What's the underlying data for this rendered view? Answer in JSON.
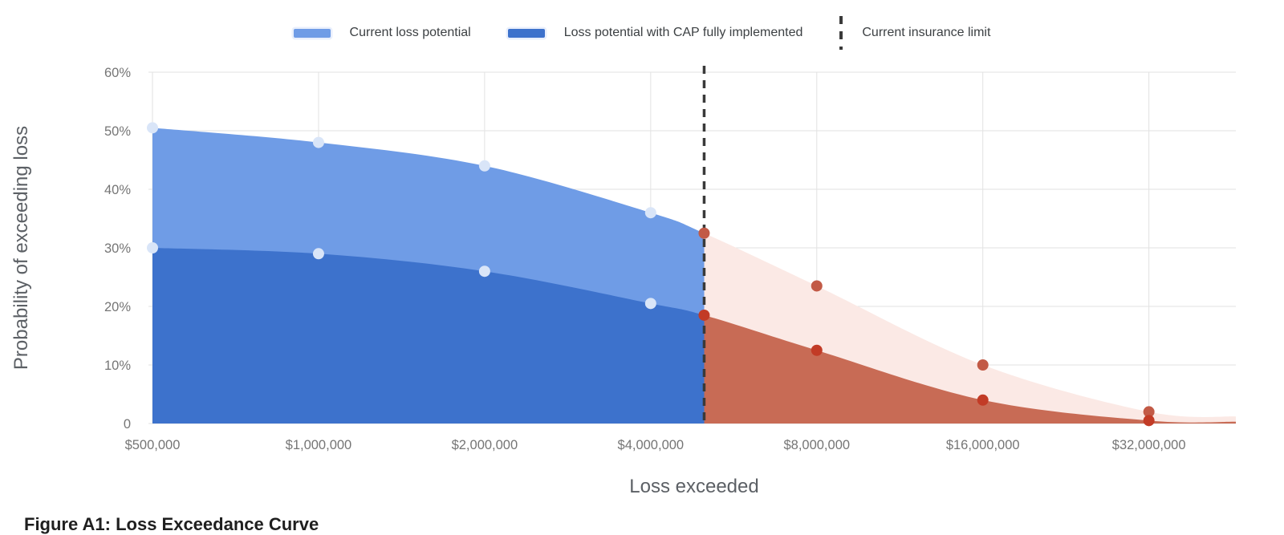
{
  "legend": {
    "items": [
      {
        "label": "Current loss potential",
        "swatch_color": "#6f9ce6",
        "type": "swatch"
      },
      {
        "label": "Loss potential with CAP fully implemented",
        "swatch_color": "#3d72cc",
        "type": "swatch"
      },
      {
        "label": "Current insurance limit",
        "type": "dashed-line",
        "color": "#3a3a3a"
      }
    ]
  },
  "chart_data": {
    "type": "area",
    "title": "",
    "x_axis": {
      "label": "Loss exceeded",
      "scale": "log2",
      "min": 500000,
      "max": 46000000,
      "ticks": [
        {
          "value": 500000,
          "label": "$500,000"
        },
        {
          "value": 1000000,
          "label": "$1,000,000"
        },
        {
          "value": 2000000,
          "label": "$2,000,000"
        },
        {
          "value": 4000000,
          "label": "$4,000,000"
        },
        {
          "value": 8000000,
          "label": "$8,000,000"
        },
        {
          "value": 16000000,
          "label": "$16,000,000"
        },
        {
          "value": 32000000,
          "label": "$32,000,000"
        }
      ]
    },
    "y_axis": {
      "label": "Probability of exceeding loss",
      "min": 0,
      "max": 60,
      "ticks": [
        {
          "value": 60,
          "label": "60%"
        },
        {
          "value": 50,
          "label": "50%"
        },
        {
          "value": 40,
          "label": "40%"
        },
        {
          "value": 30,
          "label": "30%"
        },
        {
          "value": 20,
          "label": "20%"
        },
        {
          "value": 10,
          "label": "10%"
        },
        {
          "value": 0,
          "label": "0"
        }
      ]
    },
    "insurance_limit": {
      "value": 5000000,
      "label": "Current insurance limit"
    },
    "limit_line": {
      "color": "#3a3a3a",
      "dash": "10 8",
      "width": 3.5
    },
    "grid": {
      "show": true,
      "color": "#e2e2e2"
    },
    "series": [
      {
        "name": "Current loss potential",
        "points": [
          [
            500000,
            50.5
          ],
          [
            1000000,
            48
          ],
          [
            2000000,
            44
          ],
          [
            4000000,
            36
          ],
          [
            5000000,
            32.5
          ],
          [
            8000000,
            23.5
          ],
          [
            16000000,
            10
          ],
          [
            32000000,
            2
          ],
          [
            46000000,
            1.2
          ]
        ],
        "markers": [
          [
            500000,
            50.5
          ],
          [
            1000000,
            48
          ],
          [
            2000000,
            44
          ],
          [
            4000000,
            36
          ],
          [
            5000000,
            32.5
          ],
          [
            8000000,
            23.5
          ],
          [
            16000000,
            10
          ],
          [
            32000000,
            2
          ]
        ],
        "colors": {
          "area_before_limit": "#6f9ce6",
          "area_after_limit": "#fbe9e5",
          "marker_before_limit": "#d9e5f8",
          "marker_after_limit": "#c25a46"
        }
      },
      {
        "name": "Loss potential with CAP fully implemented",
        "points": [
          [
            500000,
            30
          ],
          [
            1000000,
            29
          ],
          [
            2000000,
            26
          ],
          [
            4000000,
            20.5
          ],
          [
            5000000,
            18.5
          ],
          [
            8000000,
            12.5
          ],
          [
            16000000,
            4
          ],
          [
            32000000,
            0.5
          ],
          [
            46000000,
            0.3
          ]
        ],
        "markers": [
          [
            500000,
            30
          ],
          [
            1000000,
            29
          ],
          [
            2000000,
            26
          ],
          [
            4000000,
            20.5
          ],
          [
            5000000,
            18.5
          ],
          [
            8000000,
            12.5
          ],
          [
            16000000,
            4
          ],
          [
            32000000,
            0.5
          ]
        ],
        "colors": {
          "area_before_limit": "#3d72cc",
          "area_after_limit": "#c86b55",
          "marker_before_limit": "#d9e5f8",
          "marker_after_limit": "#c23b26"
        }
      }
    ],
    "text_colors": {
      "tick": "#757575",
      "axis_title": "#5c6065"
    }
  },
  "caption": {
    "text": "Figure A1: Loss Exceedance Curve"
  }
}
